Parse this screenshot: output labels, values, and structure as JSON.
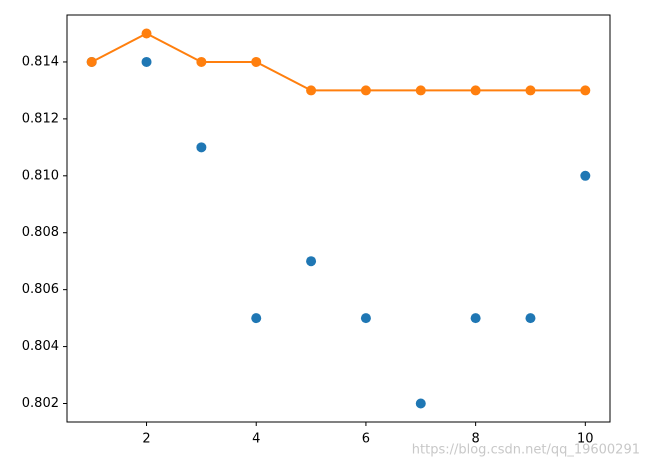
{
  "chart_data": {
    "type": "line",
    "x": [
      1,
      2,
      3,
      4,
      5,
      6,
      7,
      8,
      9,
      10
    ],
    "series": [
      {
        "type": "scatter",
        "color": "#1f77b4",
        "values": [
          0.814,
          0.814,
          0.811,
          0.805,
          0.807,
          0.805,
          0.802,
          0.805,
          0.805,
          0.81
        ]
      },
      {
        "type": "line",
        "color": "#ff7f0e",
        "values": [
          0.814,
          0.815,
          0.814,
          0.814,
          0.813,
          0.813,
          0.813,
          0.813,
          0.813,
          0.813
        ]
      }
    ],
    "xlim": [
      0.55,
      10.45
    ],
    "ylim": [
      0.80135,
      0.81565
    ],
    "xticks": [
      2,
      4,
      6,
      8,
      10
    ],
    "yticks": [
      0.802,
      0.804,
      0.806,
      0.808,
      {
        "value": 0.81,
        "label": "0.810"
      },
      0.812,
      0.814
    ],
    "watermark": "https://blog.csdn.net/qq_19600291"
  }
}
